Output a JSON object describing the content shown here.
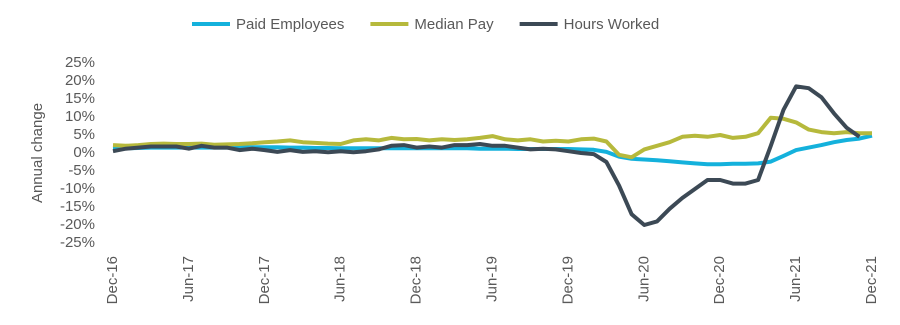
{
  "chart_data": {
    "type": "line",
    "ylabel": "Annual change",
    "categories": [
      "Dec-16",
      null,
      null,
      null,
      null,
      null,
      "Jun-17",
      null,
      null,
      null,
      null,
      null,
      "Dec-17",
      null,
      null,
      null,
      null,
      null,
      "Jun-18",
      null,
      null,
      null,
      null,
      null,
      "Dec-18",
      null,
      null,
      null,
      null,
      null,
      "Jun-19",
      null,
      null,
      null,
      null,
      null,
      "Dec-19",
      null,
      null,
      null,
      null,
      null,
      "Jun-20",
      null,
      null,
      null,
      null,
      null,
      "Dec-20",
      null,
      null,
      null,
      null,
      null,
      "Jun-21",
      null,
      null,
      null,
      null,
      null,
      "Dec-21"
    ],
    "series": [
      {
        "name": "Paid Employees",
        "color": "#14b1dc",
        "values": [
          1.2,
          1.3,
          1.4,
          1.5,
          1.5,
          1.5,
          1.5,
          1.5,
          1.5,
          1.5,
          1.6,
          1.6,
          1.6,
          1.6,
          1.5,
          1.5,
          1.4,
          1.4,
          1.3,
          1.3,
          1.3,
          1.3,
          1.3,
          1.3,
          1.3,
          1.3,
          1.3,
          1.3,
          1.3,
          1.2,
          1.2,
          1.2,
          1.1,
          1.1,
          1.1,
          1.1,
          1.1,
          1.0,
          0.9,
          0.3,
          -1.0,
          -1.6,
          -1.8,
          -2.0,
          -2.3,
          -2.6,
          -2.9,
          -3.1,
          -3.1,
          -3.0,
          -3.0,
          -2.9,
          -2.4,
          -0.8,
          0.8,
          1.5,
          2.2,
          3.0,
          3.6,
          4.0,
          4.8
        ]
      },
      {
        "name": "Median Pay",
        "color": "#b6b93c",
        "values": [
          2.2,
          2.0,
          2.2,
          2.5,
          2.6,
          2.5,
          2.5,
          2.6,
          2.3,
          2.4,
          2.5,
          2.7,
          3.0,
          3.2,
          3.5,
          3.0,
          2.8,
          2.6,
          2.5,
          3.5,
          3.8,
          3.5,
          4.2,
          3.8,
          3.9,
          3.5,
          3.8,
          3.6,
          3.8,
          4.2,
          4.7,
          3.8,
          3.5,
          3.8,
          3.2,
          3.4,
          3.2,
          3.8,
          4.0,
          3.2,
          -0.5,
          -1.2,
          1.0,
          2.0,
          3.0,
          4.5,
          4.8,
          4.5,
          5.0,
          4.2,
          4.5,
          5.5,
          9.8,
          9.5,
          8.5,
          6.5,
          5.8,
          5.5,
          5.8,
          5.5,
          5.5
        ]
      },
      {
        "name": "Hours Worked",
        "color": "#3c4955",
        "values": [
          0.5,
          1.2,
          1.5,
          1.8,
          1.8,
          1.8,
          1.2,
          2.0,
          1.5,
          1.5,
          0.8,
          1.2,
          0.8,
          0.3,
          0.8,
          0.3,
          0.5,
          0.2,
          0.5,
          0.2,
          0.5,
          1.0,
          2.0,
          2.2,
          1.5,
          1.8,
          1.5,
          2.2,
          2.2,
          2.5,
          2.0,
          2.0,
          1.5,
          1.0,
          1.2,
          1.0,
          0.5,
          0.0,
          -0.3,
          -2.5,
          -9,
          -17,
          -20,
          -19,
          -15.5,
          -12.5,
          -10,
          -7.5,
          -7.5,
          -8.5,
          -8.5,
          -7.5,
          2,
          12,
          18.5,
          18,
          15.5,
          11,
          7,
          4.5,
          null
        ]
      }
    ],
    "ylim": [
      -25,
      25
    ],
    "yticks": [
      {
        "value": -25,
        "label": "-25%"
      },
      {
        "value": -20,
        "label": "-20%"
      },
      {
        "value": -15,
        "label": "-15%"
      },
      {
        "value": -10,
        "label": "-10%"
      },
      {
        "value": -5,
        "label": "-5%"
      },
      {
        "value": 0,
        "label": "0%"
      },
      {
        "value": 5,
        "label": "5%"
      },
      {
        "value": 10,
        "label": "10%"
      },
      {
        "value": 15,
        "label": "15%"
      },
      {
        "value": 20,
        "label": "20%"
      },
      {
        "value": 25,
        "label": "25%"
      }
    ],
    "grid": false,
    "legend": "top"
  }
}
